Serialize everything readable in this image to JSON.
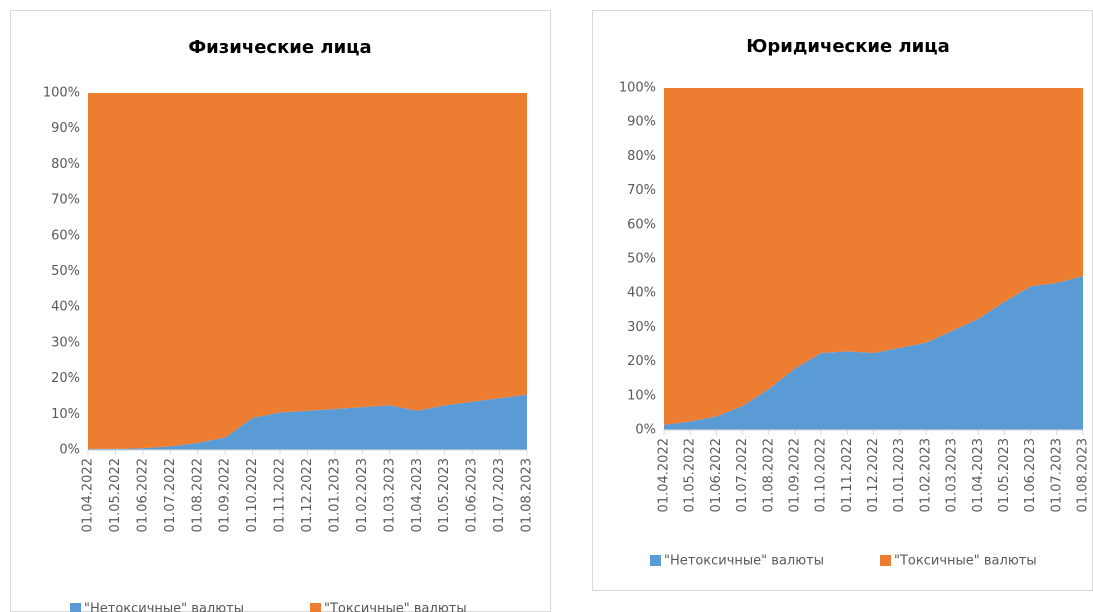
{
  "chart_data": [
    {
      "type": "area",
      "stacked": true,
      "title": "Физические лица",
      "categories": [
        "01.04.2022",
        "01.05.2022",
        "01.06.2022",
        "01.07.2022",
        "01.08.2022",
        "01.09.2022",
        "01.10.2022",
        "01.11.2022",
        "01.12.2022",
        "01.01.2023",
        "01.02.2023",
        "01.03.2023",
        "01.04.2023",
        "01.05.2023",
        "01.06.2023",
        "01.07.2023",
        "01.08.2023"
      ],
      "series": [
        {
          "name": "\"Нетоксичные\" валюты",
          "color": "#5b9bd5",
          "values": [
            0.3,
            0.3,
            0.5,
            1,
            2,
            3.5,
            9,
            10.5,
            11,
            11.5,
            12,
            12.5,
            11,
            12.5,
            13.5,
            14.5,
            15.5
          ]
        },
        {
          "name": "\"Токсичные\" валюты",
          "color": "#ed7d31",
          "values": [
            99.7,
            99.7,
            99.5,
            99,
            98,
            96.5,
            91,
            89.5,
            89,
            88.5,
            88,
            87.5,
            89,
            87.5,
            86.5,
            85.5,
            84.5
          ]
        }
      ],
      "ylim": [
        0,
        100
      ],
      "yticks": [
        {
          "value": 0,
          "label": "0%"
        },
        {
          "value": 10,
          "label": "10%"
        },
        {
          "value": 20,
          "label": "20%"
        },
        {
          "value": 30,
          "label": "30%"
        },
        {
          "value": 40,
          "label": "40%"
        },
        {
          "value": 50,
          "label": "50%"
        },
        {
          "value": 60,
          "label": "60%"
        },
        {
          "value": 70,
          "label": "70%"
        },
        {
          "value": 80,
          "label": "80%"
        },
        {
          "value": 90,
          "label": "90%"
        },
        {
          "value": 100,
          "label": "100%"
        }
      ],
      "legend": "bottom"
    },
    {
      "type": "area",
      "stacked": true,
      "title": "Юридические лица",
      "categories": [
        "01.04.2022",
        "01.05.2022",
        "01.06.2022",
        "01.07.2022",
        "01.08.2022",
        "01.09.2022",
        "01.10.2022",
        "01.11.2022",
        "01.12.2022",
        "01.01.2023",
        "01.02.2023",
        "01.03.2023",
        "01.04.2023",
        "01.05.2023",
        "01.06.2023",
        "01.07.2023",
        "01.08.2023"
      ],
      "series": [
        {
          "name": "\"Нетоксичные\" валюты",
          "color": "#5b9bd5",
          "values": [
            1.5,
            2.5,
            4,
            7,
            12,
            18,
            22.5,
            23,
            22.5,
            24,
            25.5,
            29,
            32.5,
            37.5,
            42,
            43,
            45
          ]
        },
        {
          "name": "\"Токсичные\" валюты",
          "color": "#ed7d31",
          "values": [
            98.5,
            97.5,
            96,
            93,
            88,
            82,
            77.5,
            77,
            77.5,
            76,
            74.5,
            71,
            67.5,
            62.5,
            58,
            57,
            55
          ]
        }
      ],
      "ylim": [
        0,
        100
      ],
      "yticks": [
        {
          "value": 0,
          "label": "0%"
        },
        {
          "value": 10,
          "label": "10%"
        },
        {
          "value": 20,
          "label": "20%"
        },
        {
          "value": 30,
          "label": "30%"
        },
        {
          "value": 40,
          "label": "40%"
        },
        {
          "value": 50,
          "label": "50%"
        },
        {
          "value": 60,
          "label": "60%"
        },
        {
          "value": 70,
          "label": "70%"
        },
        {
          "value": 80,
          "label": "80%"
        },
        {
          "value": 90,
          "label": "90%"
        },
        {
          "value": 100,
          "label": "100%"
        }
      ],
      "legend": "bottom"
    }
  ]
}
